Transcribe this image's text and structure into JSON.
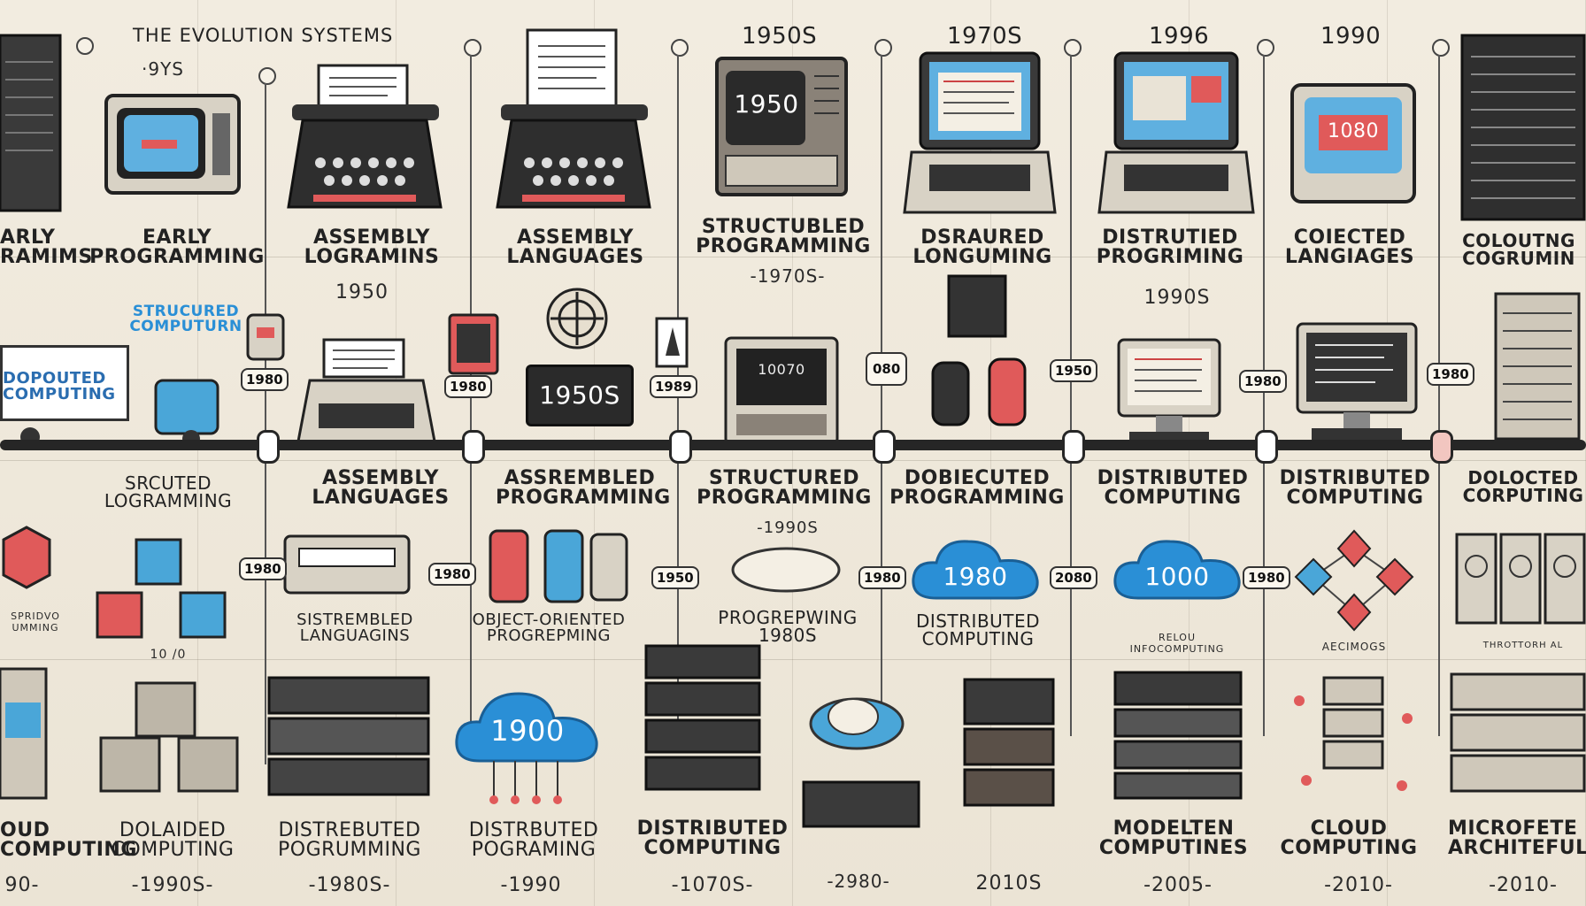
{
  "header": {
    "title": "THE EVOLUTION SYSTEMS",
    "subtitle": "·9YS"
  },
  "top_years": [
    "1950S",
    "1970S",
    "1996",
    "1990"
  ],
  "row1_labels": [
    "ARLY\nRAMIMS",
    "EARLY\nPROGRAMMING",
    "ASSEMBLY\nLOGRAMINS",
    "ASSEMBLY\nLANGUAGES",
    "STRUCTUBLED\nPROGRAMMING",
    "DSRAURED\nLONGUMING",
    "DISTRUTIED\nPROGRIMING",
    "COIECTED\nLANGIAGES",
    "COLOUTNG\nCOGRUMIN"
  ],
  "row1_sub": {
    "a": "1950",
    "b": "-1970S-",
    "c": "1990S"
  },
  "monitor_texts": {
    "m1950": "1950",
    "m1950s": "1950S",
    "mcode": "10070",
    "m1080": "1080"
  },
  "row2_misc": {
    "structured": "STRUCURED\nCOMPUTURN",
    "distributed": "DOPOUTED\nCOMPUTING"
  },
  "badges": [
    "1980",
    "1980",
    "1989",
    "080",
    "1950",
    "1980",
    "1980"
  ],
  "row3_labels": [
    "SRCUTED\nLOGRAMMING",
    "ASSEMBLY\nLANGUAGES",
    "ASSREMBLED\nPROGRAMMING",
    "STRUCTURED\nPROGRAMMING",
    "DOBIECUTED\nPROGRAMMING",
    "DISTRIBUTED\nCOMPUTING",
    "DISTRIBUTED\nCOMPUTING",
    "DOLOCTED\nCORPUTING"
  ],
  "row3_sub": {
    "a": "-1990S",
    "b": "1980"
  },
  "row3_badges": [
    "1980",
    "1980",
    "1950",
    "1980",
    "2080",
    "1980"
  ],
  "clouds": [
    "1980",
    "1000",
    "1900"
  ],
  "row4_labels": [
    "SISTREMBLED\nLANGUAGINS",
    "OBJECT-ORIENTED\nPROGREPMING",
    "PROGREPWING\n1980S",
    "DISTRIBUTED\nCOMPUTING",
    "RELOU\nINFOCOMPUTING",
    "AECIMOGS",
    "THROTTORH AL"
  ],
  "row4_misc": {
    "small_left": "SPRIDVO\nUMMING",
    "yr": "10 /0"
  },
  "bottom_labels": [
    "OUD\nCOMPUTING",
    "DOLAIDED\nCOMPUTING",
    "DISTREBUTED\nPOGRUMMING",
    "DISTRBUTED\nPOGRAMING",
    "DISTRIBUTED\nCOMPUTING",
    "MODELTEN\nCOMPUTINES",
    "CLOUD\nCOMPUTING",
    "MICROFETE\nARCHITEFUL"
  ],
  "bottom_years": [
    "90-",
    "-1990S-",
    "-1980S-",
    "-1990",
    "-1070S-",
    "-2980-",
    "2010S",
    "-2005-",
    "-2010-",
    "-2010-"
  ],
  "colors": {
    "bg": "#efe9dc",
    "line": "#262626",
    "blue": "#2a8fd6",
    "red": "#e05a5a",
    "screen": "#5fb0e0"
  }
}
